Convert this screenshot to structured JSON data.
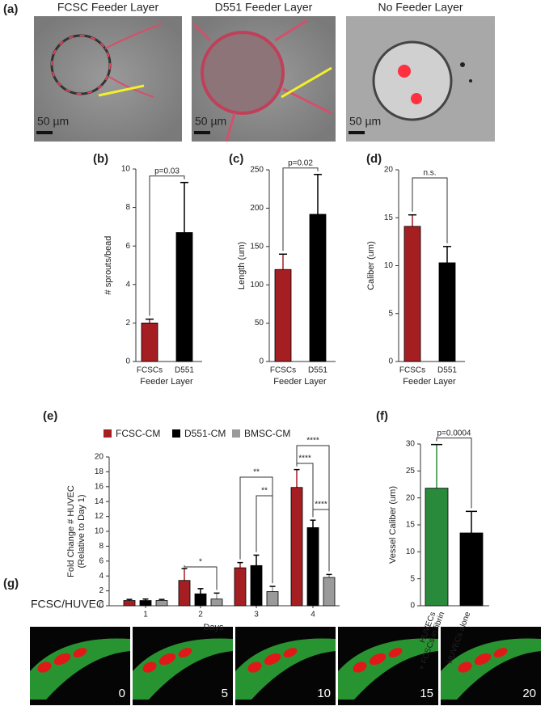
{
  "panels": {
    "a": {
      "label": "(a)",
      "images": [
        {
          "title": "FCSC Feeder Layer",
          "scale": "50 µm"
        },
        {
          "title": "D551 Feeder Layer",
          "scale": "50 µm"
        },
        {
          "title": "No Feeder Layer",
          "scale": "50 µm"
        }
      ]
    },
    "g": {
      "label": "(g)",
      "title": [
        {
          "text": "FCSC",
          "color": "#2db34a"
        },
        {
          "text": "/",
          "color": "#222222"
        },
        {
          "text": "HUVEC",
          "color": "#d42020"
        }
      ],
      "frames": [
        "0",
        "5",
        "10",
        "15",
        "20"
      ]
    }
  },
  "chart_data": [
    {
      "type": "bar",
      "label": "(b)",
      "ylabel": [
        "# sprouts/bead"
      ],
      "xlabel": "Feeder Layer",
      "categories": [
        "FCSCs",
        "D551"
      ],
      "values": [
        2.0,
        6.7
      ],
      "errors": [
        0.2,
        2.6
      ],
      "colors": [
        "#a51e22",
        "#000000"
      ],
      "ylim": [
        0,
        10
      ],
      "yticks": [
        0,
        2,
        4,
        6,
        8,
        10
      ],
      "significance": [
        {
          "label": "p=0.03",
          "from": 0,
          "to": 1
        }
      ]
    },
    {
      "type": "bar",
      "label": "(c)",
      "ylabel": [
        "Length (um)"
      ],
      "xlabel": "Feeder Layer",
      "categories": [
        "FCSCs",
        "D551"
      ],
      "values": [
        120,
        192
      ],
      "errors": [
        20,
        52
      ],
      "colors": [
        "#a51e22",
        "#000000"
      ],
      "ylim": [
        0,
        250
      ],
      "yticks": [
        0,
        50,
        100,
        150,
        200,
        250
      ],
      "significance": [
        {
          "label": "p=0.02",
          "from": 0,
          "to": 1
        }
      ]
    },
    {
      "type": "bar",
      "label": "(d)",
      "ylabel": [
        "Caliber (um)"
      ],
      "xlabel": "Feeder Layer",
      "categories": [
        "FCSCs",
        "D551"
      ],
      "values": [
        14.1,
        10.3
      ],
      "errors": [
        1.2,
        1.7
      ],
      "colors": [
        "#a51e22",
        "#000000"
      ],
      "ylim": [
        0,
        20
      ],
      "yticks": [
        0,
        5,
        10,
        15,
        20
      ],
      "significance": [
        {
          "label": "n.s.",
          "from": 0,
          "to": 1
        }
      ]
    },
    {
      "type": "grouped_bar",
      "label": "(e)",
      "ylabel": [
        "Fold Change # HUVEC",
        "(Relative to Day 1)"
      ],
      "xlabel": "Days",
      "categories": [
        "1",
        "2",
        "3",
        "4"
      ],
      "series": [
        {
          "name": "FCSC-CM",
          "color": "#a51e22",
          "values": [
            0.7,
            3.4,
            5.1,
            15.9
          ],
          "errors": [
            0.15,
            1.6,
            0.7,
            2.4
          ]
        },
        {
          "name": "D551-CM",
          "color": "#000000",
          "values": [
            0.7,
            1.6,
            5.4,
            10.5
          ],
          "errors": [
            0.2,
            0.7,
            1.4,
            1.0
          ]
        },
        {
          "name": "BMSC-CM",
          "color": "#9a9a9a",
          "values": [
            0.7,
            0.9,
            1.9,
            3.8
          ],
          "errors": [
            0.15,
            0.8,
            0.7,
            0.4
          ]
        }
      ],
      "ylim": [
        0,
        20
      ],
      "yticks": [
        0,
        2,
        4,
        6,
        8,
        10,
        12,
        14,
        16,
        18,
        20
      ],
      "significance": [
        {
          "label": "*",
          "group": 1,
          "from": 0,
          "to": 2
        },
        {
          "label": "**",
          "group": 2,
          "from": 0,
          "to": 2
        },
        {
          "label": "**",
          "group": 2,
          "from": 1,
          "to": 2
        },
        {
          "label": "****",
          "group": 3,
          "from": 0,
          "to": 2
        },
        {
          "label": "****",
          "group": 3,
          "from": 0,
          "to": 1
        },
        {
          "label": "****",
          "group": 3,
          "from": 1,
          "to": 2
        }
      ]
    },
    {
      "type": "bar",
      "label": "(f)",
      "ylabel": [
        "Vessel Caliber (um)"
      ],
      "categories": [
        [
          "HUVECs",
          "+ FCSCs in fibrin"
        ],
        [
          "HUVECs alone"
        ]
      ],
      "values": [
        21.8,
        13.5
      ],
      "errors": [
        8.1,
        4.0
      ],
      "colors": [
        "#2a8a3c",
        "#000000"
      ],
      "ylim": [
        0,
        30
      ],
      "yticks": [
        0,
        5,
        10,
        15,
        20,
        25,
        30
      ],
      "significance": [
        {
          "label": "p=0.0004",
          "from": 0,
          "to": 1
        }
      ]
    }
  ]
}
